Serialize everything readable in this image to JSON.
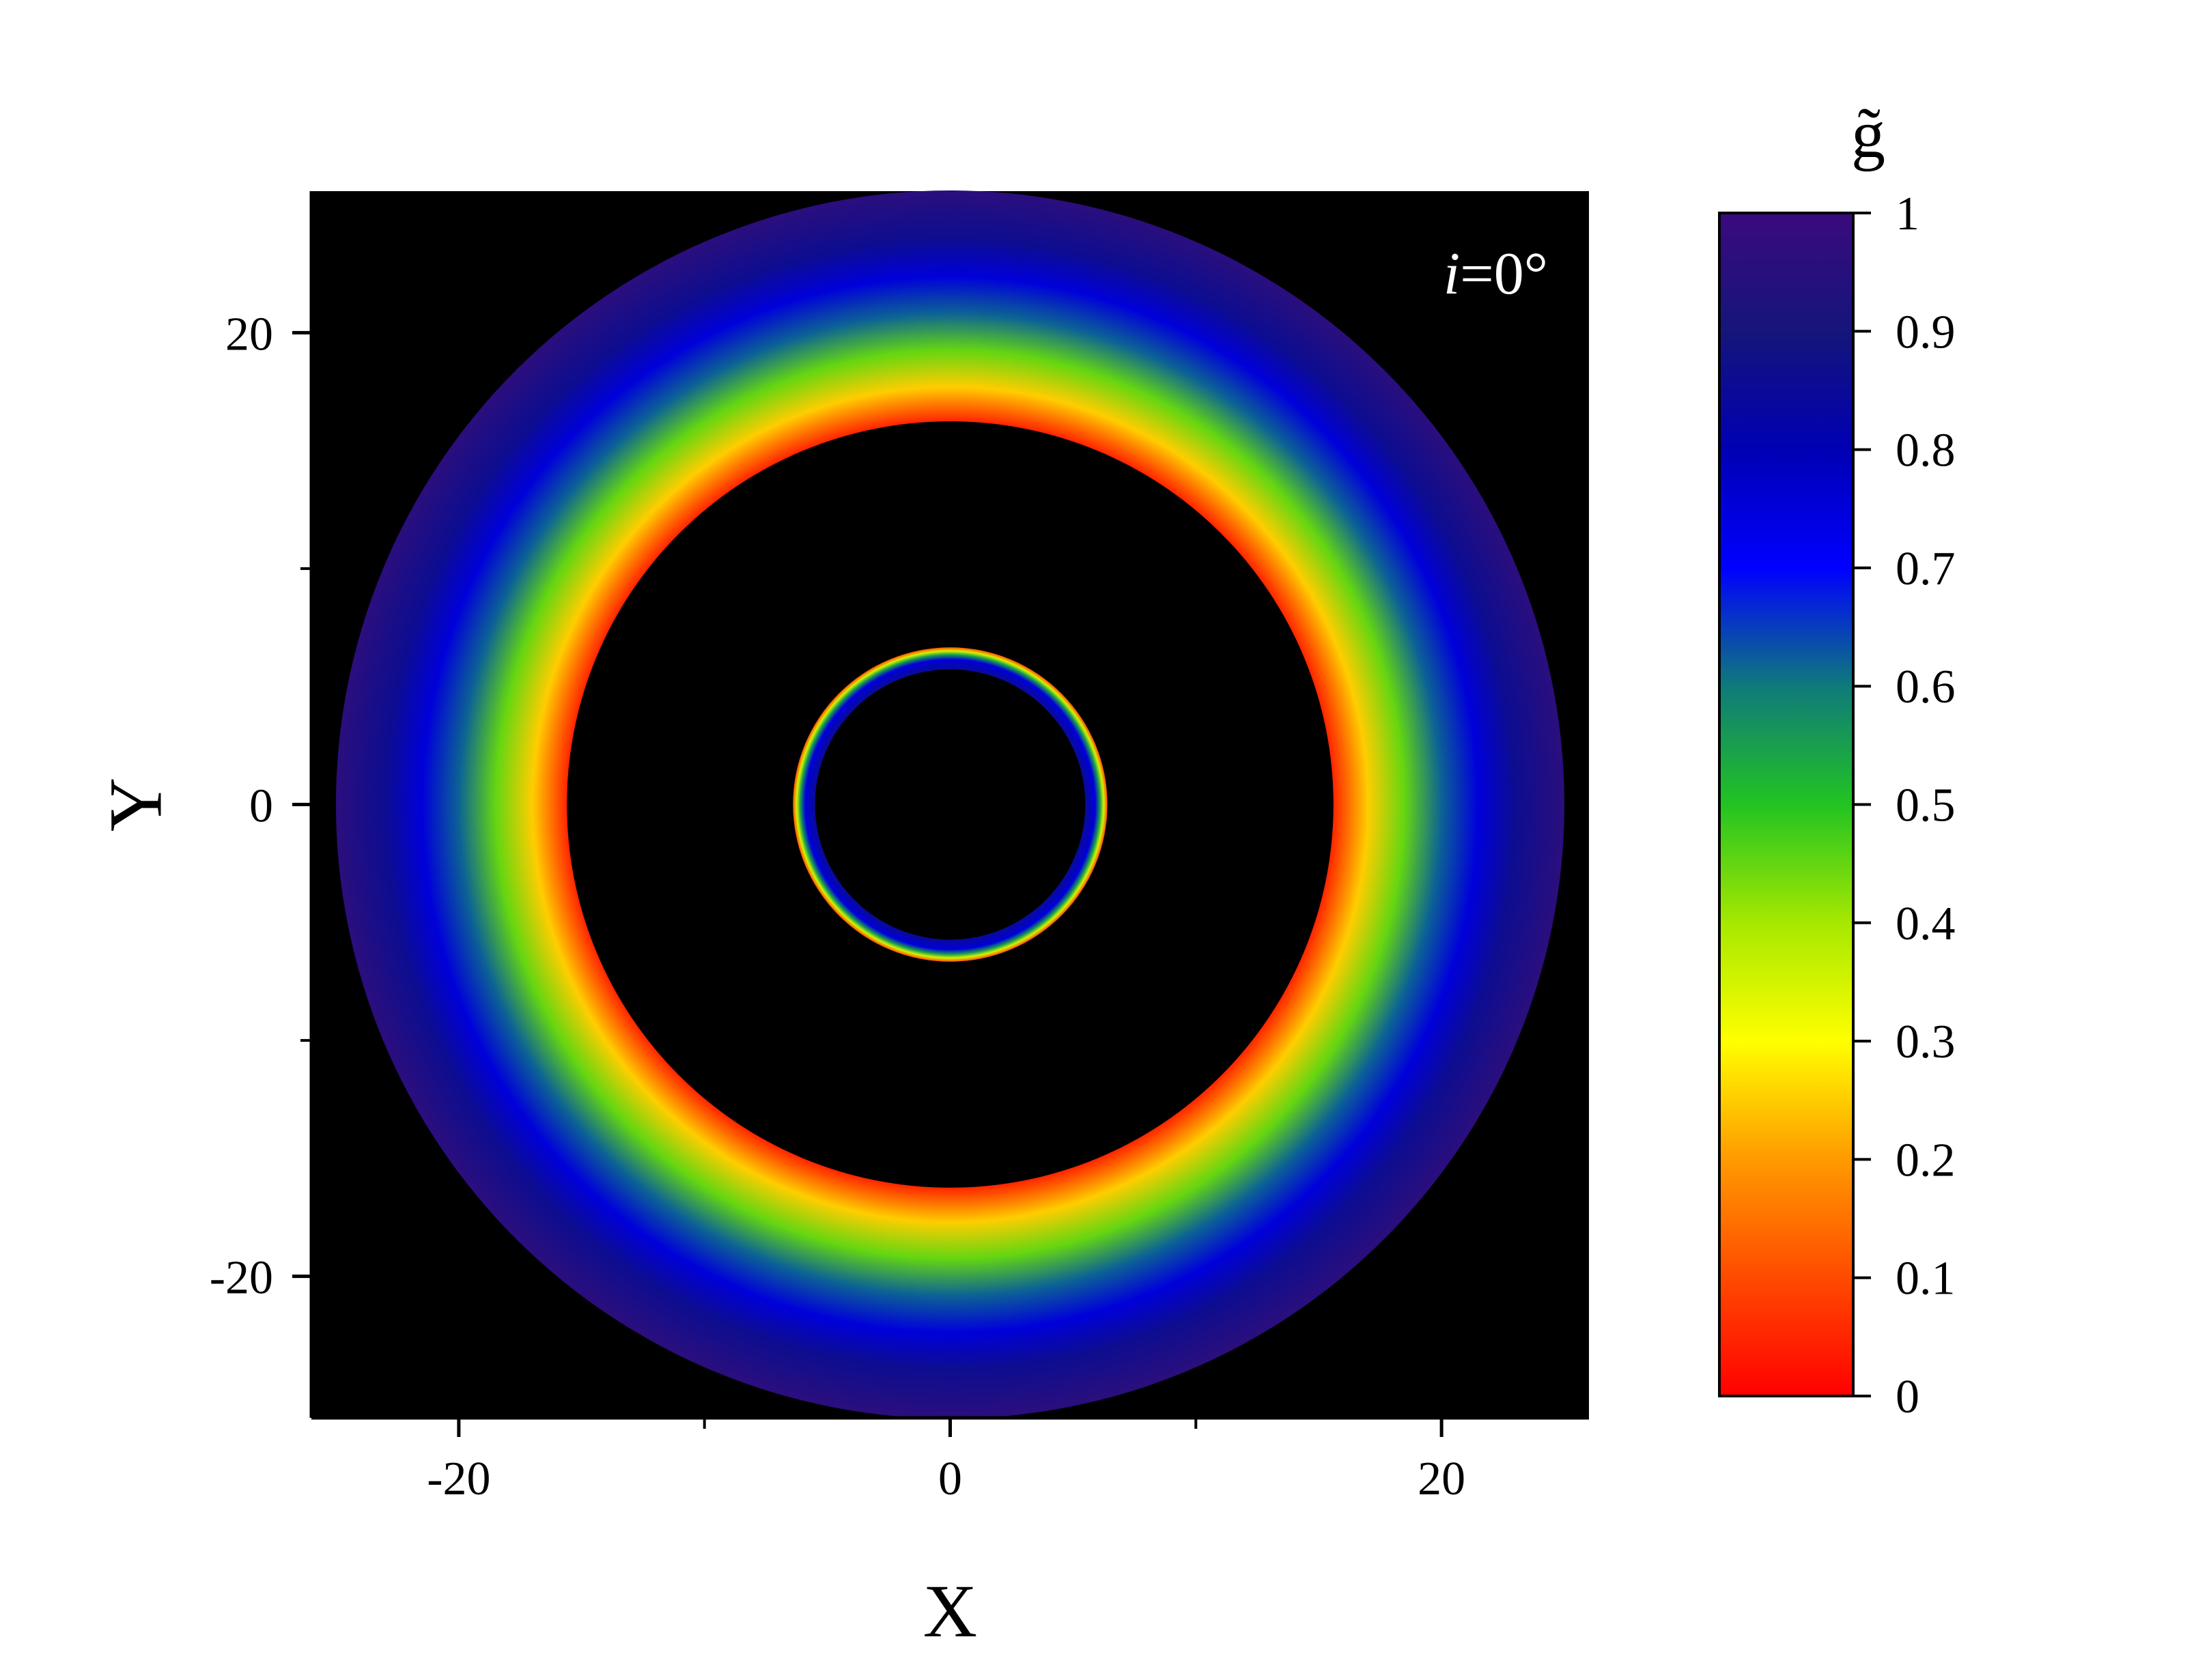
{
  "chart_data": {
    "type": "heatmap",
    "description": "",
    "xlabel": "X",
    "ylabel": "Y",
    "xlim": [
      -26,
      26
    ],
    "ylim": [
      -26,
      26
    ],
    "x_ticks": [
      -20,
      0,
      20
    ],
    "y_ticks": [
      -20,
      0,
      20
    ],
    "x_tick_labels": [
      "-20",
      "0",
      "20"
    ],
    "y_tick_labels": [
      "-20",
      "0",
      "20"
    ],
    "annotation": {
      "italic": "i",
      "text": "=0°"
    },
    "background_color": "#000000",
    "primary_image": {
      "inner_radius": 15.6,
      "outer_radius": 25,
      "profile": [
        {
          "r": 15.6,
          "value": 0.05
        },
        {
          "r": 17.0,
          "value": 0.25
        },
        {
          "r": 18.5,
          "value": 0.45
        },
        {
          "r": 20.0,
          "value": 0.62
        },
        {
          "r": 21.5,
          "value": 0.75
        },
        {
          "r": 23.0,
          "value": 0.86
        },
        {
          "r": 25.0,
          "value": 0.96
        }
      ]
    },
    "secondary_image": {
      "inner_radius": 5.5,
      "outer_radius": 6.4,
      "profile": [
        {
          "r": 5.5,
          "value": 0.85
        },
        {
          "r": 5.9,
          "value": 0.75
        },
        {
          "r": 6.1,
          "value": 0.55
        },
        {
          "r": 6.25,
          "value": 0.35
        },
        {
          "r": 6.4,
          "value": 0.1
        }
      ]
    },
    "colorbar": {
      "title": "g̃",
      "range": [
        0,
        1
      ],
      "ticks": [
        0,
        0.1,
        0.2,
        0.3,
        0.4,
        0.5,
        0.6,
        0.7,
        0.8,
        0.9,
        1
      ],
      "tick_labels": [
        "0",
        "0.1",
        "0.2",
        "0.3",
        "0.4",
        "0.5",
        "0.6",
        "0.7",
        "0.8",
        "0.9",
        "1"
      ],
      "colors": [
        {
          "value": 0.0,
          "color": "#ff0000"
        },
        {
          "value": 0.1,
          "color": "#ff4a00"
        },
        {
          "value": 0.2,
          "color": "#ff9a00"
        },
        {
          "value": 0.3,
          "color": "#ffff00"
        },
        {
          "value": 0.4,
          "color": "#a6e800"
        },
        {
          "value": 0.5,
          "color": "#22c322"
        },
        {
          "value": 0.6,
          "color": "#0f7a7a"
        },
        {
          "value": 0.7,
          "color": "#0000ff"
        },
        {
          "value": 0.8,
          "color": "#0000b4"
        },
        {
          "value": 0.9,
          "color": "#15157a"
        },
        {
          "value": 1.0,
          "color": "#3a0a7e"
        }
      ]
    }
  }
}
